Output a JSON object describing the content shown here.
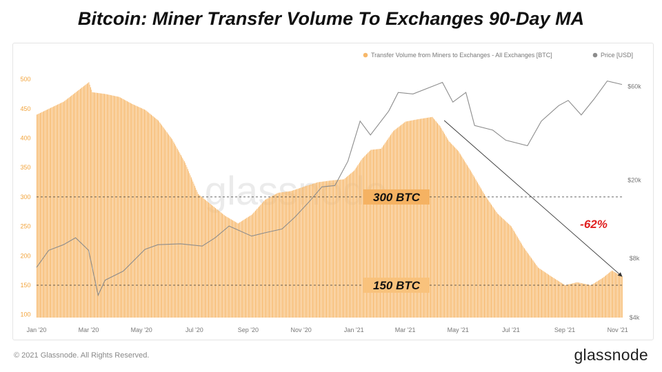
{
  "title": "Bitcoin: Miner Transfer Volume To Exchanges 90-Day MA",
  "footer": {
    "copyright": "© 2021 Glassnode. All Rights Reserved.",
    "logo": "glassnode"
  },
  "chart_data": {
    "type": "bar",
    "watermark": "glassnode",
    "legend_placement": "top-right",
    "series": [
      {
        "name": "Transfer Volume from Miners to Exchanges - All Exchanges [BTC]",
        "kind": "bar",
        "axis": "left",
        "color": "#f7b86a"
      },
      {
        "name": "Price [USD]",
        "kind": "line",
        "axis": "right",
        "color": "#8c8c8c"
      }
    ],
    "x_range": [
      "2020-01-01",
      "2021-11-06"
    ],
    "x_ticks": [
      "Jan '20",
      "Mar '20",
      "May '20",
      "Jul '20",
      "Sep '20",
      "Nov '20",
      "Jan '21",
      "Mar '21",
      "May '21",
      "Jul '21",
      "Sep '21",
      "Nov '21"
    ],
    "y_left": {
      "ticks": [
        100,
        150,
        200,
        250,
        300,
        350,
        400,
        450,
        500
      ],
      "range": [
        95,
        520
      ]
    },
    "y_right": {
      "scale": "log",
      "ticks": [
        "$4k",
        "$8k",
        "$20k",
        "$60k"
      ],
      "tick_values": [
        4000,
        8000,
        20000,
        60000
      ],
      "range": [
        4000,
        75000
      ]
    },
    "volume_btc": [
      [
        "2020-01-01",
        440
      ],
      [
        "2020-01-15",
        450
      ],
      [
        "2020-02-01",
        462
      ],
      [
        "2020-02-15",
        478
      ],
      [
        "2020-03-01",
        495
      ],
      [
        "2020-03-05",
        478
      ],
      [
        "2020-03-20",
        475
      ],
      [
        "2020-04-05",
        470
      ],
      [
        "2020-04-20",
        458
      ],
      [
        "2020-05-05",
        448
      ],
      [
        "2020-05-20",
        430
      ],
      [
        "2020-06-05",
        398
      ],
      [
        "2020-06-20",
        358
      ],
      [
        "2020-07-05",
        305
      ],
      [
        "2020-07-20",
        287
      ],
      [
        "2020-08-05",
        268
      ],
      [
        "2020-08-20",
        255
      ],
      [
        "2020-09-05",
        270
      ],
      [
        "2020-09-20",
        295
      ],
      [
        "2020-10-05",
        307
      ],
      [
        "2020-10-20",
        310
      ],
      [
        "2020-11-05",
        318
      ],
      [
        "2020-11-20",
        325
      ],
      [
        "2020-12-05",
        328
      ],
      [
        "2020-12-20",
        330
      ],
      [
        "2021-01-01",
        345
      ],
      [
        "2021-01-10",
        365
      ],
      [
        "2021-01-20",
        380
      ],
      [
        "2021-02-01",
        382
      ],
      [
        "2021-02-15",
        412
      ],
      [
        "2021-03-01",
        428
      ],
      [
        "2021-03-15",
        432
      ],
      [
        "2021-04-01",
        436
      ],
      [
        "2021-04-10",
        420
      ],
      [
        "2021-04-20",
        395
      ],
      [
        "2021-05-01",
        378
      ],
      [
        "2021-05-15",
        345
      ],
      [
        "2021-06-01",
        302
      ],
      [
        "2021-06-15",
        272
      ],
      [
        "2021-07-01",
        250
      ],
      [
        "2021-07-15",
        215
      ],
      [
        "2021-08-01",
        180
      ],
      [
        "2021-08-15",
        166
      ],
      [
        "2021-09-01",
        150
      ],
      [
        "2021-09-15",
        155
      ],
      [
        "2021-10-01",
        150
      ],
      [
        "2021-10-15",
        163
      ],
      [
        "2021-10-25",
        175
      ],
      [
        "2021-11-06",
        165
      ]
    ],
    "price_usd": [
      [
        "2020-01-01",
        7200
      ],
      [
        "2020-01-15",
        8800
      ],
      [
        "2020-02-01",
        9400
      ],
      [
        "2020-02-15",
        10200
      ],
      [
        "2020-03-01",
        8800
      ],
      [
        "2020-03-12",
        5200
      ],
      [
        "2020-03-20",
        6200
      ],
      [
        "2020-04-10",
        6900
      ],
      [
        "2020-05-05",
        8900
      ],
      [
        "2020-05-20",
        9400
      ],
      [
        "2020-06-15",
        9500
      ],
      [
        "2020-07-10",
        9250
      ],
      [
        "2020-07-25",
        10200
      ],
      [
        "2020-08-10",
        11700
      ],
      [
        "2020-09-05",
        10400
      ],
      [
        "2020-09-20",
        10800
      ],
      [
        "2020-10-10",
        11300
      ],
      [
        "2020-10-25",
        13000
      ],
      [
        "2020-11-10",
        15500
      ],
      [
        "2020-11-25",
        18500
      ],
      [
        "2020-12-10",
        18800
      ],
      [
        "2020-12-25",
        25000
      ],
      [
        "2021-01-08",
        40000
      ],
      [
        "2021-01-20",
        34000
      ],
      [
        "2021-02-10",
        45000
      ],
      [
        "2021-02-21",
        56000
      ],
      [
        "2021-03-10",
        55000
      ],
      [
        "2021-04-13",
        63000
      ],
      [
        "2021-04-25",
        50000
      ],
      [
        "2021-05-10",
        56000
      ],
      [
        "2021-05-20",
        38000
      ],
      [
        "2021-06-10",
        36000
      ],
      [
        "2021-06-25",
        32000
      ],
      [
        "2021-07-20",
        30000
      ],
      [
        "2021-08-05",
        40000
      ],
      [
        "2021-08-25",
        48000
      ],
      [
        "2021-09-05",
        51000
      ],
      [
        "2021-09-20",
        43000
      ],
      [
        "2021-10-05",
        52000
      ],
      [
        "2021-10-20",
        64000
      ],
      [
        "2021-11-06",
        61500
      ]
    ],
    "annotations": {
      "ref_lines": [
        {
          "value": 300,
          "label": "300 BTC"
        },
        {
          "value": 150,
          "label": "150 BTC"
        }
      ],
      "trend_arrow": {
        "from": [
          "2021-04-15",
          430
        ],
        "to": [
          "2021-11-06",
          165
        ]
      },
      "change_label": "-62%"
    }
  }
}
